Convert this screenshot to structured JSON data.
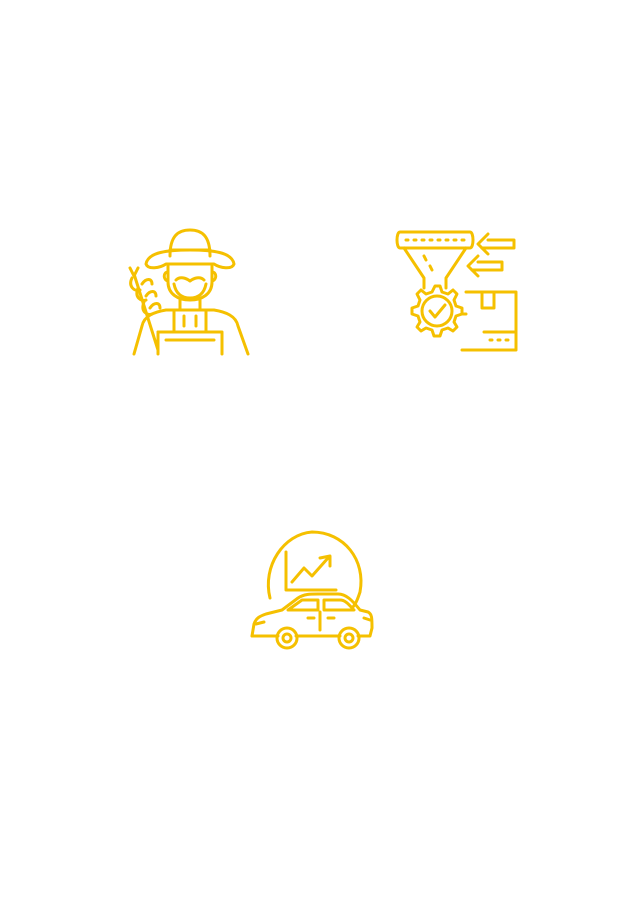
{
  "colors": {
    "icon_stroke": "#F5C000",
    "background": "#FFFFFF"
  },
  "icons": [
    {
      "id": "farmer",
      "name": "farmer-with-wheat-icon"
    },
    {
      "id": "quality",
      "name": "funnel-gear-quality-check-icon"
    },
    {
      "id": "car",
      "name": "car-sales-growth-icon"
    }
  ]
}
